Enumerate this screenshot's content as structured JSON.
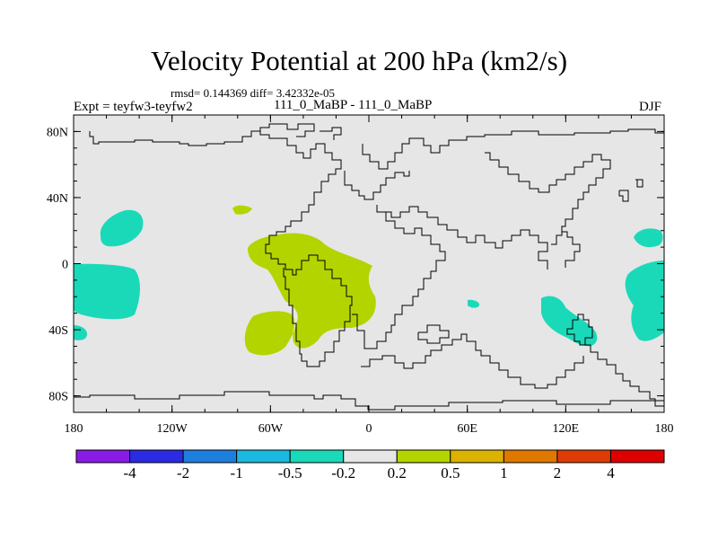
{
  "title": "Velocity Potential at 200 hPa (km2/s)",
  "stats_line": "rmsd= 0.144369  diff= 3.42332e-05",
  "expt_label": "Expt = teyfw3-teyfw2",
  "cases_label": "111_0_MaBP - 111_0_MaBP",
  "season_label": "DJF",
  "y_axis": {
    "range": [
      -90,
      90
    ],
    "ticks": [
      80,
      40,
      0,
      -40,
      -80
    ],
    "labels": [
      "80N",
      "40N",
      "0",
      "40S",
      "80S"
    ]
  },
  "x_axis": {
    "range": [
      -180,
      180
    ],
    "ticks": [
      -180,
      -120,
      -60,
      0,
      60,
      120,
      180
    ],
    "labels": [
      "180",
      "120W",
      "60W",
      "0",
      "60E",
      "120E",
      "180"
    ]
  },
  "colorbar": {
    "colors": [
      "#8a1be6",
      "#2b2be3",
      "#1d7ede",
      "#1bb8e0",
      "#1ad9b9",
      "#e6e6e6",
      "#b4d400",
      "#dcb200",
      "#e07800",
      "#df3b05",
      "#de0000"
    ],
    "labels": [
      "-4",
      "-2",
      "-1",
      "-0.5",
      "-0.2",
      "0.2",
      "0.5",
      "1",
      "2",
      "4"
    ]
  },
  "colors": {
    "background": "#e6e6e6",
    "positive_contour": "#b4d400",
    "negative_contour": "#1ad9b9"
  }
}
